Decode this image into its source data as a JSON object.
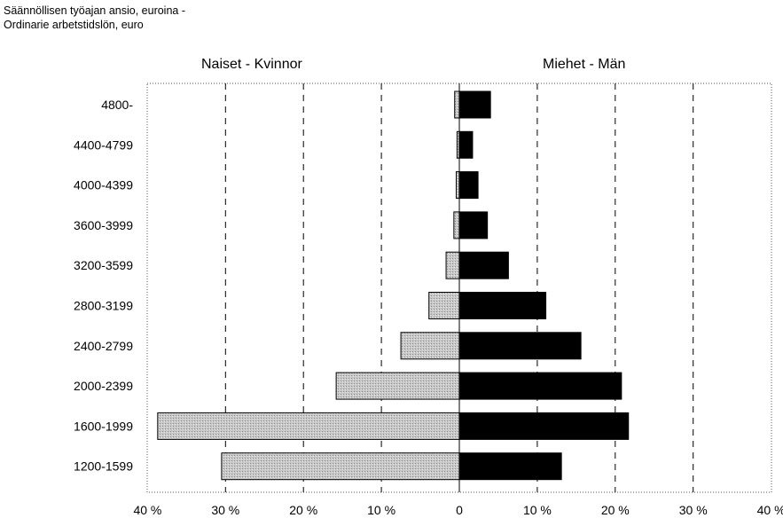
{
  "title": {
    "line1": "Säännöllisen työajan ansio, euroina -",
    "line2": "Ordinarie arbetstidslön, euro"
  },
  "colors": {
    "women": "#c8c8c8",
    "men": "#000000"
  },
  "chart_data": {
    "type": "bar",
    "orientation": "horizontal",
    "layout": "population-pyramid",
    "categories": [
      "4800-",
      "4400-4799",
      "4000-4399",
      "3600-3999",
      "3200-3599",
      "2800-3199",
      "2400-2799",
      "2000-2399",
      "1600-1999",
      "1200-1599"
    ],
    "series": [
      {
        "name": "Naiset - Kvinnor",
        "side": "left",
        "values": [
          0.6,
          0.3,
          0.4,
          0.7,
          1.7,
          3.9,
          7.5,
          15.8,
          38.7,
          30.5
        ]
      },
      {
        "name": "Miehet - Män",
        "side": "right",
        "values": [
          4.0,
          1.7,
          2.4,
          3.6,
          6.3,
          11.1,
          15.6,
          20.8,
          21.7,
          13.1
        ]
      }
    ],
    "xlim": [
      -40,
      40
    ],
    "xticks": [
      -40,
      -30,
      -20,
      -10,
      0,
      10,
      20,
      30,
      40
    ],
    "xtick_labels": [
      "40 %",
      "30 %",
      "20 %",
      "10 %",
      "0",
      "10 %",
      "20 %",
      "30 %",
      "40 %"
    ],
    "grid": "vertical dashed at 10 % steps"
  }
}
